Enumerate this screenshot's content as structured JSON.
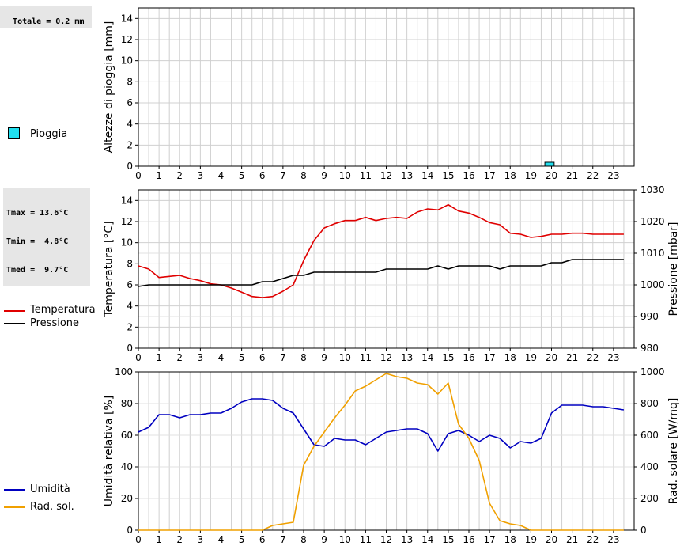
{
  "panels": {
    "rain": {
      "info_text": "Totale = 0.2 mm",
      "legend": [
        {
          "label": "Pioggia",
          "color": "#20e0f0"
        }
      ]
    },
    "temp": {
      "info_lines": [
        "Tmax = 13.6°C",
        "Tmin =  4.8°C",
        "Tmed =  9.7°C"
      ],
      "legend": [
        {
          "label": "Temperatura",
          "color": "#e00000"
        },
        {
          "label": "Pressione",
          "color": "#000000"
        }
      ]
    },
    "humid": {
      "legend": [
        {
          "label": "Umidità",
          "color": "#0000c0"
        },
        {
          "label": "Rad. sol.",
          "color": "#f0a000"
        }
      ]
    }
  },
  "chart_data": [
    {
      "type": "bar",
      "ylabel": "Altezze di pioggia [mm]",
      "ylim": [
        0,
        15
      ],
      "yticks": [
        0,
        2,
        4,
        6,
        8,
        10,
        12,
        14
      ],
      "xlim": [
        0,
        24
      ],
      "xticks": [
        "0",
        "1",
        "2",
        "3",
        "4",
        "5",
        "6",
        "7",
        "8",
        "9",
        "10",
        "11",
        "12",
        "13",
        "14",
        "15",
        "16",
        "17",
        "18",
        "19",
        "20",
        "21",
        "22",
        "23"
      ],
      "grid": true,
      "series": [
        {
          "name": "Pioggia",
          "color": "#20e0f0",
          "bars": [
            {
              "x": 19.75,
              "value": 0.2
            }
          ]
        }
      ]
    },
    {
      "type": "line",
      "ylabel": "Temperatura [°C]",
      "y2label": "Pressione [mbar]",
      "ylim": [
        0,
        15
      ],
      "yticks": [
        0,
        2,
        4,
        6,
        8,
        10,
        12,
        14
      ],
      "y2lim": [
        980,
        1030
      ],
      "y2ticks": [
        980,
        990,
        1000,
        1010,
        1020,
        1030
      ],
      "xlim": [
        0,
        24
      ],
      "xticks": [
        "0",
        "1",
        "2",
        "3",
        "4",
        "5",
        "6",
        "7",
        "8",
        "9",
        "10",
        "11",
        "12",
        "13",
        "14",
        "15",
        "16",
        "17",
        "18",
        "19",
        "20",
        "21",
        "22",
        "23"
      ],
      "grid": true,
      "series": [
        {
          "name": "Temperatura",
          "color": "#e00000",
          "axis": "left",
          "x": [
            0,
            0.5,
            1,
            1.5,
            2,
            2.5,
            3,
            3.5,
            4,
            4.5,
            5,
            5.5,
            6,
            6.5,
            7,
            7.5,
            8,
            8.5,
            9,
            9.5,
            10,
            10.5,
            11,
            11.5,
            12,
            12.5,
            13,
            13.5,
            14,
            14.5,
            15,
            15.5,
            16,
            16.5,
            17,
            17.5,
            18,
            18.5,
            19,
            19.5,
            20,
            20.5,
            21,
            21.5,
            22,
            22.5,
            23,
            23.5
          ],
          "y": [
            7.8,
            7.5,
            6.7,
            6.8,
            6.9,
            6.6,
            6.4,
            6.1,
            6.0,
            5.7,
            5.3,
            4.9,
            4.8,
            4.9,
            5.4,
            6.0,
            8.3,
            10.2,
            11.4,
            11.8,
            12.1,
            12.1,
            12.4,
            12.1,
            12.3,
            12.4,
            12.3,
            12.9,
            13.2,
            13.1,
            13.6,
            13.0,
            12.8,
            12.4,
            11.9,
            11.7,
            10.9,
            10.8,
            10.5,
            10.6,
            10.8,
            10.8,
            10.9,
            10.9,
            10.8,
            10.8,
            10.8,
            10.8
          ]
        },
        {
          "name": "Pressione",
          "color": "#000000",
          "axis": "right",
          "x": [
            0,
            0.5,
            1,
            1.5,
            2,
            2.5,
            3,
            3.5,
            4,
            4.5,
            5,
            5.5,
            6,
            6.5,
            7,
            7.5,
            8,
            8.5,
            9,
            9.5,
            10,
            10.5,
            11,
            11.5,
            12,
            12.5,
            13,
            13.5,
            14,
            14.5,
            15,
            15.5,
            16,
            16.5,
            17,
            17.5,
            18,
            18.5,
            19,
            19.5,
            20,
            20.5,
            21,
            21.5,
            22,
            22.5,
            23,
            23.5
          ],
          "y": [
            999.5,
            1000,
            1000,
            1000,
            1000,
            1000,
            1000,
            1000,
            1000,
            1000,
            1000,
            1000,
            1001,
            1001,
            1002,
            1003,
            1003,
            1004,
            1004,
            1004,
            1004,
            1004,
            1004,
            1004,
            1005,
            1005,
            1005,
            1005,
            1005,
            1006,
            1005,
            1006,
            1006,
            1006,
            1006,
            1005,
            1006,
            1006,
            1006,
            1006,
            1007,
            1007,
            1008,
            1008,
            1008,
            1008,
            1008,
            1008
          ]
        }
      ]
    },
    {
      "type": "line",
      "ylabel": "Umidità relativa [%]",
      "y2label": "Rad. solare [W/mq]",
      "ylim": [
        0,
        100
      ],
      "yticks": [
        0,
        20,
        40,
        60,
        80,
        100
      ],
      "y2lim": [
        0,
        1000
      ],
      "y2ticks": [
        0,
        200,
        400,
        600,
        800,
        1000
      ],
      "xlim": [
        0,
        24
      ],
      "xticks": [
        "0",
        "1",
        "2",
        "3",
        "4",
        "5",
        "6",
        "7",
        "8",
        "9",
        "10",
        "11",
        "12",
        "13",
        "14",
        "15",
        "16",
        "17",
        "18",
        "19",
        "20",
        "21",
        "22",
        "23"
      ],
      "grid": true,
      "series": [
        {
          "name": "Umidità",
          "color": "#0000c0",
          "axis": "left",
          "x": [
            0,
            0.5,
            1,
            1.5,
            2,
            2.5,
            3,
            3.5,
            4,
            4.5,
            5,
            5.5,
            6,
            6.5,
            7,
            7.5,
            8,
            8.5,
            9,
            9.5,
            10,
            10.5,
            11,
            11.5,
            12,
            12.5,
            13,
            13.5,
            14,
            14.5,
            15,
            15.5,
            16,
            16.5,
            17,
            17.5,
            18,
            18.5,
            19,
            19.5,
            20,
            20.5,
            21,
            21.5,
            22,
            22.5,
            23,
            23.5
          ],
          "y": [
            62,
            65,
            73,
            73,
            71,
            73,
            73,
            74,
            74,
            77,
            81,
            83,
            83,
            82,
            77,
            74,
            64,
            54,
            53,
            58,
            57,
            57,
            54,
            58,
            62,
            63,
            64,
            64,
            61,
            50,
            61,
            63,
            60,
            56,
            60,
            58,
            52,
            56,
            55,
            58,
            74,
            79,
            79,
            79,
            78,
            78,
            77,
            76
          ]
        },
        {
          "name": "Rad. sol.",
          "color": "#f0a000",
          "axis": "right",
          "x": [
            0,
            0.5,
            1,
            1.5,
            2,
            2.5,
            3,
            3.5,
            4,
            4.5,
            5,
            5.5,
            6,
            6.5,
            7,
            7.5,
            8,
            8.5,
            9,
            9.5,
            10,
            10.5,
            11,
            11.5,
            12,
            12.5,
            13,
            13.5,
            14,
            14.5,
            15,
            15.5,
            16,
            16.5,
            17,
            17.5,
            18,
            18.5,
            19,
            19.5,
            20,
            20.5,
            21,
            21.5,
            22,
            22.5,
            23,
            23.5
          ],
          "y": [
            0,
            0,
            0,
            0,
            0,
            0,
            0,
            0,
            0,
            0,
            0,
            0,
            0,
            30,
            40,
            50,
            410,
            530,
            620,
            710,
            790,
            880,
            910,
            950,
            990,
            970,
            960,
            930,
            920,
            860,
            930,
            670,
            580,
            440,
            170,
            60,
            40,
            30,
            0,
            0,
            0,
            0,
            0,
            0,
            0,
            0,
            0,
            0
          ]
        }
      ]
    }
  ]
}
